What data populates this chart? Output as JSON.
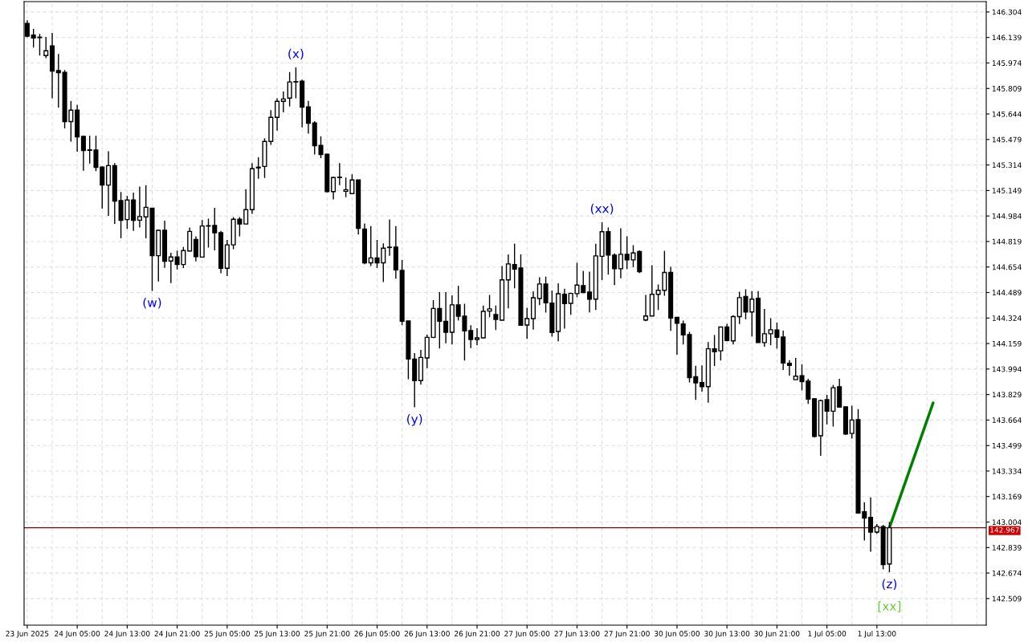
{
  "chart_data": {
    "type": "candlestick",
    "categories": [
      "23 Jun 2025",
      null,
      null,
      null,
      null,
      null,
      null,
      null,
      "24 Jun 05:00",
      null,
      null,
      null,
      null,
      null,
      null,
      null,
      "24 Jun 13:00",
      null,
      null,
      null,
      null,
      null,
      null,
      null,
      "24 Jun 21:00",
      null,
      null,
      null,
      null,
      null,
      null,
      null,
      "25 Jun 05:00",
      null,
      null,
      null,
      null,
      null,
      null,
      null,
      "25 Jun 13:00",
      null,
      null,
      null,
      null,
      null,
      null,
      null,
      "25 Jun 21:00",
      null,
      null,
      null,
      null,
      null,
      null,
      null,
      "26 Jun 05:00",
      null,
      null,
      null,
      null,
      null,
      null,
      null,
      "26 Jun 13:00",
      null,
      null,
      null,
      null,
      null,
      null,
      null,
      "26 Jun 21:00",
      null,
      null,
      null,
      null,
      null,
      null,
      null,
      "27 Jun 05:00",
      null,
      null,
      null,
      null,
      null,
      null,
      null,
      "27 Jun 13:00",
      null,
      null,
      null,
      null,
      null,
      null,
      null,
      "27 Jun 21:00",
      null,
      null,
      null,
      null,
      null,
      null,
      null,
      "30 Jun 05:00",
      null,
      null,
      null,
      null,
      null,
      null,
      null,
      "30 Jun 13:00",
      null,
      null,
      null,
      null,
      null,
      null,
      null,
      "30 Jun 21:00",
      null,
      null,
      null,
      null,
      null,
      null,
      null,
      "1 Jul 05:00",
      null,
      null,
      null,
      null,
      null,
      null,
      null,
      "1 Jul 13:00",
      null,
      null,
      null,
      null,
      null,
      null,
      null,
      null,
      null,
      null,
      null,
      null,
      null,
      null,
      null,
      null,
      null
    ],
    "color": "#000000",
    "ohlc": [
      [
        146.23,
        146.25,
        146.14,
        146.148
      ],
      [
        146.154,
        146.195,
        146.074,
        146.136
      ],
      [
        146.141,
        146.162,
        146.022,
        146.138
      ],
      [
        146.022,
        146.143,
        146.005,
        146.053
      ],
      [
        146.084,
        146.169,
        145.745,
        145.922
      ],
      [
        145.925,
        146.032,
        145.686,
        145.911
      ],
      [
        145.913,
        145.928,
        145.551,
        145.595
      ],
      [
        145.595,
        145.728,
        145.465,
        145.669
      ],
      [
        145.669,
        145.702,
        145.4,
        145.496
      ],
      [
        145.499,
        145.503,
        145.277,
        145.408
      ],
      [
        145.412,
        145.503,
        145.323,
        145.409
      ],
      [
        145.411,
        145.503,
        145.274,
        145.298
      ],
      [
        145.3,
        145.305,
        145.032,
        145.184
      ],
      [
        145.184,
        145.403,
        144.985,
        145.31
      ],
      [
        145.31,
        145.326,
        144.933,
        145.08
      ],
      [
        145.084,
        145.139,
        144.84,
        144.956
      ],
      [
        144.961,
        145.115,
        144.901,
        145.087
      ],
      [
        145.087,
        145.136,
        144.887,
        144.956
      ],
      [
        144.957,
        145.174,
        144.91,
        144.98
      ],
      [
        144.978,
        145.183,
        144.84,
        145.04
      ],
      [
        145.035,
        145.036,
        144.499,
        144.727
      ],
      [
        144.727,
        144.896,
        144.56,
        144.891
      ],
      [
        144.891,
        144.953,
        144.648,
        144.691
      ],
      [
        144.693,
        144.746,
        144.55,
        144.719
      ],
      [
        144.719,
        144.76,
        144.638,
        144.67
      ],
      [
        144.67,
        144.784,
        144.647,
        144.76
      ],
      [
        144.758,
        144.91,
        144.755,
        144.884
      ],
      [
        144.832,
        144.853,
        144.69,
        144.721
      ],
      [
        144.718,
        144.957,
        144.716,
        144.919
      ],
      [
        144.921,
        144.967,
        144.78,
        144.919
      ],
      [
        144.923,
        145.037,
        144.761,
        144.875
      ],
      [
        144.876,
        144.888,
        144.613,
        144.646
      ],
      [
        144.646,
        144.829,
        144.596,
        144.797
      ],
      [
        144.797,
        144.977,
        144.769,
        144.963
      ],
      [
        144.963,
        144.977,
        144.852,
        144.932
      ],
      [
        144.932,
        145.157,
        144.93,
        145.025
      ],
      [
        145.025,
        145.326,
        144.998,
        145.29
      ],
      [
        145.295,
        145.364,
        145.225,
        145.3
      ],
      [
        145.305,
        145.487,
        145.23,
        145.466
      ],
      [
        145.466,
        145.669,
        145.444,
        145.622
      ],
      [
        145.622,
        145.745,
        145.537,
        145.726
      ],
      [
        145.726,
        145.79,
        145.655,
        145.741
      ],
      [
        145.747,
        145.915,
        145.693,
        145.851
      ],
      [
        145.851,
        145.946,
        145.745,
        145.853
      ],
      [
        145.856,
        145.866,
        145.557,
        145.688
      ],
      [
        145.69,
        145.728,
        145.517,
        145.584
      ],
      [
        145.586,
        145.598,
        145.382,
        145.439
      ],
      [
        145.441,
        145.499,
        145.358,
        145.382
      ],
      [
        145.384,
        145.387,
        145.138,
        145.141
      ],
      [
        145.142,
        145.238,
        145.091,
        145.233
      ],
      [
        145.235,
        145.326,
        145.184,
        145.233
      ],
      [
        145.144,
        145.233,
        145.106,
        145.154
      ],
      [
        145.129,
        145.254,
        145.128,
        145.217
      ],
      [
        145.217,
        145.218,
        144.864,
        144.904
      ],
      [
        144.9,
        144.936,
        144.672,
        144.681
      ],
      [
        144.681,
        144.919,
        144.66,
        144.713
      ],
      [
        144.713,
        144.829,
        144.648,
        144.681
      ],
      [
        144.681,
        144.807,
        144.556,
        144.776
      ],
      [
        144.782,
        144.961,
        144.727,
        144.78
      ],
      [
        144.783,
        144.918,
        144.578,
        144.636
      ],
      [
        144.632,
        144.7,
        144.277,
        144.303
      ],
      [
        144.305,
        144.305,
        143.928,
        144.059
      ],
      [
        144.059,
        144.097,
        143.746,
        143.919
      ],
      [
        143.919,
        144.118,
        143.893,
        144.069
      ],
      [
        144.066,
        144.217,
        144.0,
        144.199
      ],
      [
        144.199,
        144.44,
        144.194,
        144.386
      ],
      [
        144.386,
        144.492,
        144.127,
        144.303
      ],
      [
        144.303,
        144.492,
        144.161,
        144.232
      ],
      [
        144.232,
        144.471,
        144.153,
        144.409
      ],
      [
        144.409,
        144.533,
        144.308,
        144.336
      ],
      [
        144.336,
        144.416,
        144.049,
        144.241
      ],
      [
        144.243,
        144.277,
        144.13,
        144.185
      ],
      [
        144.185,
        144.258,
        144.147,
        144.196
      ],
      [
        144.196,
        144.405,
        144.195,
        144.367
      ],
      [
        144.369,
        144.473,
        144.329,
        144.383
      ],
      [
        144.346,
        144.405,
        144.246,
        144.315
      ],
      [
        144.31,
        144.66,
        144.309,
        144.571
      ],
      [
        144.571,
        144.736,
        144.386,
        144.674
      ],
      [
        144.67,
        144.805,
        144.516,
        144.641
      ],
      [
        144.648,
        144.736,
        144.274,
        144.277
      ],
      [
        144.279,
        144.39,
        144.189,
        144.32
      ],
      [
        144.32,
        144.497,
        144.249,
        144.455
      ],
      [
        144.45,
        144.587,
        144.407,
        144.544
      ],
      [
        144.544,
        144.592,
        144.359,
        144.423
      ],
      [
        144.421,
        144.502,
        144.204,
        144.23
      ],
      [
        144.237,
        144.549,
        144.173,
        144.481
      ],
      [
        144.478,
        144.514,
        144.256,
        144.417
      ],
      [
        144.419,
        144.488,
        144.345,
        144.483
      ],
      [
        144.482,
        144.681,
        144.459,
        144.537
      ],
      [
        144.534,
        144.629,
        144.485,
        144.489
      ],
      [
        144.492,
        144.624,
        144.361,
        144.446
      ],
      [
        144.446,
        144.804,
        144.376,
        144.726
      ],
      [
        144.723,
        144.944,
        144.57,
        144.882
      ],
      [
        144.882,
        144.91,
        144.605,
        144.731
      ],
      [
        144.731,
        144.742,
        144.537,
        144.643
      ],
      [
        144.643,
        144.904,
        144.581,
        144.736
      ],
      [
        144.736,
        144.852,
        144.641,
        144.7
      ],
      [
        144.7,
        144.795,
        144.653,
        144.745
      ],
      [
        144.754,
        144.762,
        144.615,
        144.624
      ],
      [
        144.311,
        144.473,
        144.304,
        144.337
      ],
      [
        144.337,
        144.666,
        144.336,
        144.477
      ],
      [
        144.477,
        144.541,
        144.376,
        144.503
      ],
      [
        144.503,
        144.759,
        144.468,
        144.619
      ],
      [
        144.619,
        144.655,
        144.241,
        144.324
      ],
      [
        144.328,
        144.33,
        144.086,
        144.29
      ],
      [
        144.285,
        144.307,
        144.153,
        144.215
      ],
      [
        144.217,
        144.234,
        143.907,
        143.939
      ],
      [
        143.944,
        144.015,
        143.795,
        143.904
      ],
      [
        143.907,
        144.018,
        143.848,
        143.88
      ],
      [
        143.88,
        144.169,
        143.776,
        144.125
      ],
      [
        144.125,
        144.214,
        144.013,
        144.106
      ],
      [
        144.112,
        144.266,
        144.049,
        144.266
      ],
      [
        144.266,
        144.286,
        144.174,
        144.179
      ],
      [
        144.176,
        144.342,
        144.153,
        144.333
      ],
      [
        144.333,
        144.494,
        144.285,
        144.456
      ],
      [
        144.463,
        144.51,
        144.316,
        144.363
      ],
      [
        144.363,
        144.498,
        144.205,
        144.446
      ],
      [
        144.451,
        144.498,
        144.165,
        144.165
      ],
      [
        144.165,
        144.383,
        144.139,
        144.222
      ],
      [
        144.222,
        144.323,
        144.148,
        144.248
      ],
      [
        144.247,
        144.294,
        144.126,
        144.199
      ],
      [
        144.201,
        144.242,
        143.988,
        144.033
      ],
      [
        144.031,
        144.052,
        143.951,
        144.017
      ],
      [
        143.925,
        144.066,
        143.924,
        143.948
      ],
      [
        143.951,
        144.024,
        143.856,
        143.913
      ],
      [
        143.915,
        143.931,
        143.768,
        143.799
      ],
      [
        143.802,
        143.806,
        143.55,
        143.558
      ],
      [
        143.562,
        143.796,
        143.432,
        143.79
      ],
      [
        143.796,
        143.827,
        143.636,
        143.721
      ],
      [
        143.721,
        143.891,
        143.622,
        143.873
      ],
      [
        143.879,
        143.931,
        143.747,
        143.747
      ],
      [
        143.749,
        143.749,
        143.567,
        143.574
      ],
      [
        143.577,
        143.757,
        143.544,
        143.664
      ],
      [
        143.667,
        143.735,
        143.061,
        143.062
      ],
      [
        143.07,
        143.131,
        142.885,
        143.03
      ],
      [
        143.034,
        143.164,
        142.812,
        142.939
      ],
      [
        142.939,
        142.991,
        142.927,
        142.975
      ],
      [
        142.975,
        142.985,
        142.698,
        142.729
      ],
      [
        142.733,
        143.004,
        142.679,
        142.967
      ],
      null,
      null,
      null,
      null,
      null,
      null,
      null,
      null,
      null,
      null,
      null,
      null,
      null,
      null,
      null
    ],
    "series": [
      {
        "type": "line",
        "color": "#008000",
        "values": [
          null,
          null,
          null,
          null,
          null,
          null,
          null,
          null,
          null,
          null,
          null,
          null,
          null,
          null,
          null,
          null,
          null,
          null,
          null,
          null,
          null,
          null,
          null,
          null,
          null,
          null,
          null,
          null,
          null,
          null,
          null,
          null,
          null,
          null,
          null,
          null,
          null,
          null,
          null,
          null,
          null,
          null,
          null,
          null,
          null,
          null,
          null,
          null,
          null,
          null,
          null,
          null,
          null,
          null,
          null,
          null,
          null,
          null,
          null,
          null,
          null,
          null,
          null,
          null,
          null,
          null,
          null,
          null,
          null,
          null,
          null,
          null,
          null,
          null,
          null,
          null,
          null,
          null,
          null,
          null,
          null,
          null,
          null,
          null,
          null,
          null,
          null,
          null,
          null,
          null,
          null,
          null,
          null,
          null,
          null,
          null,
          null,
          null,
          null,
          null,
          null,
          null,
          null,
          null,
          null,
          null,
          null,
          null,
          null,
          null,
          null,
          null,
          null,
          null,
          null,
          null,
          null,
          null,
          null,
          null,
          null,
          null,
          null,
          null,
          null,
          null,
          null,
          null,
          null,
          null,
          null,
          null,
          null,
          null,
          null,
          null,
          null,
          null,
          142.967,
          null,
          null,
          null,
          null,
          null,
          null,
          143.775,
          null,
          null,
          null,
          null,
          null,
          null,
          null,
          null
        ]
      }
    ],
    "ylim": [
      142.337,
      146.371
    ],
    "yticks": [
      142.509,
      142.674,
      142.839,
      143.004,
      143.169,
      143.334,
      143.499,
      143.664,
      143.829,
      143.994,
      144.159,
      144.324,
      144.489,
      144.654,
      144.819,
      144.984,
      145.149,
      145.314,
      145.479,
      145.644,
      145.809,
      145.974,
      146.139,
      146.304
    ],
    "grid": true,
    "legend": false,
    "ref_lines": [
      {
        "axis": "y",
        "value": 142.967,
        "label": "142.967",
        "color": "#8b0000"
      }
    ],
    "annotations": [
      {
        "text": "(w)",
        "y": 144.499
      },
      {
        "text": "(x)",
        "y": 145.946
      },
      {
        "text": "(y)",
        "y": 143.746
      },
      {
        "text": "(xx)",
        "y": 144.944
      },
      {
        "text": "(z)",
        "y": 142.679
      },
      {
        "text": "[xx]",
        "y": 142.679
      }
    ]
  }
}
